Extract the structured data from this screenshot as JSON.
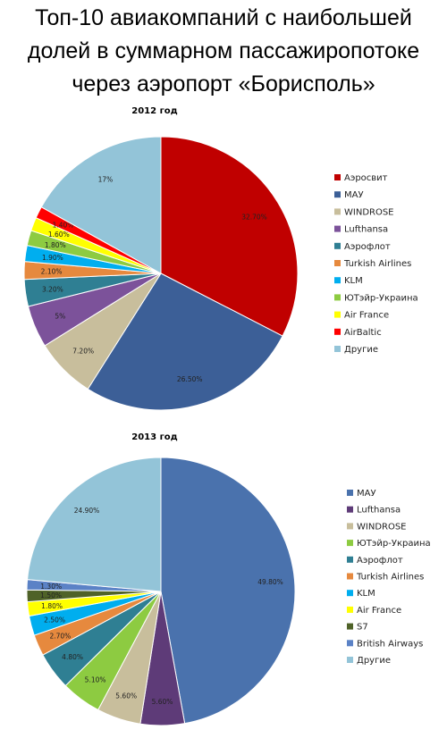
{
  "title_lines": [
    "Топ-10 авиакомпаний с наибольшей",
    "долей в суммарном пассажиропотоке",
    "через аэропорт «Борисполь»"
  ],
  "chart_data": [
    {
      "type": "pie",
      "title": "2012 год",
      "legend_position": "right",
      "slices": [
        {
          "name": "Аэросвит",
          "value": 32.7,
          "label": "32.70%",
          "color": "#C00000"
        },
        {
          "name": "МАУ",
          "value": 26.5,
          "label": "26.50%",
          "color": "#3C5F97"
        },
        {
          "name": "WINDROSE",
          "value": 7.2,
          "label": "7.20%",
          "color": "#C8BE9C"
        },
        {
          "name": "Lufthansa",
          "value": 5.0,
          "label": "5%",
          "color": "#7C529A"
        },
        {
          "name": "Аэрофлот",
          "value": 3.2,
          "label": "3.20%",
          "color": "#2F7F93"
        },
        {
          "name": "Turkish Airlines",
          "value": 2.1,
          "label": "2.10%",
          "color": "#E6893E"
        },
        {
          "name": "KLM",
          "value": 1.9,
          "label": "1.90%",
          "color": "#00AEEF"
        },
        {
          "name": "ЮТэйр-Украина",
          "value": 1.8,
          "label": "1.80%",
          "color": "#8DCB41"
        },
        {
          "name": "Air France",
          "value": 1.6,
          "label": "1.60%",
          "color": "#FFFF00"
        },
        {
          "name": "AirBaltic",
          "value": 1.4,
          "label": "1.40%",
          "color": "#FF0000"
        },
        {
          "name": "Другие",
          "value": 17.0,
          "label": "17%",
          "color": "#93C4D8"
        }
      ]
    },
    {
      "type": "pie",
      "title": "2013 год",
      "legend_position": "right",
      "slices": [
        {
          "name": "МАУ",
          "value": 49.8,
          "label": "49.80%",
          "color": "#4A72AD"
        },
        {
          "name": "Lufthansa",
          "value": 5.6,
          "label": "5.60%",
          "color": "#5E3B78"
        },
        {
          "name": "WINDROSE",
          "value": 5.6,
          "label": "5.60%",
          "color": "#C8BE9C"
        },
        {
          "name": "ЮТэйр-Украина",
          "value": 5.1,
          "label": "5.10%",
          "color": "#8DCB41"
        },
        {
          "name": "Аэрофлот",
          "value": 4.8,
          "label": "4.80%",
          "color": "#2F7F93"
        },
        {
          "name": "Turkish Airlines",
          "value": 2.7,
          "label": "2.70%",
          "color": "#E6893E"
        },
        {
          "name": "KLM",
          "value": 2.5,
          "label": "2.50%",
          "color": "#00AEEF"
        },
        {
          "name": "Air France",
          "value": 1.8,
          "label": "1.80%",
          "color": "#FFFF00"
        },
        {
          "name": "S7",
          "value": 1.5,
          "label": "1.50%",
          "color": "#4F6228"
        },
        {
          "name": "British Airways",
          "value": 1.3,
          "label": "1.30%",
          "color": "#5B82C6"
        },
        {
          "name": "Другие",
          "value": 24.9,
          "label": "24.90%",
          "color": "#93C4D8"
        }
      ]
    }
  ]
}
